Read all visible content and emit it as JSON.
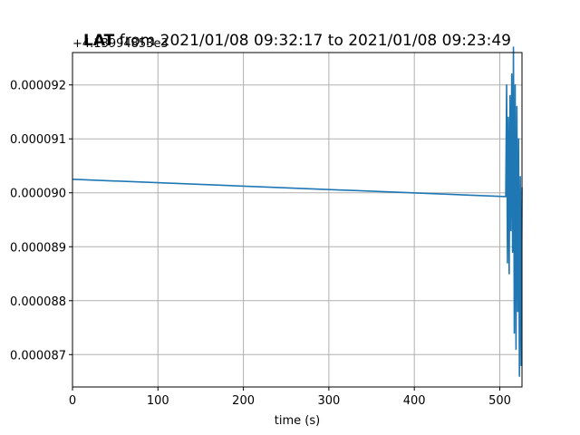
{
  "chart_data": {
    "type": "line",
    "title_bold": "LAT",
    "title_rest": " from 2021/01/08 09:32:17 to 2021/01/08 09:23:49",
    "offset_label": "+4.13994853e3",
    "xlabel": "time (s)",
    "ylabel": "",
    "xlim": [
      0,
      526
    ],
    "ylim": [
      8.64e-05,
      9.26e-05
    ],
    "grid": true,
    "x_ticks": [
      0,
      100,
      200,
      300,
      400,
      500
    ],
    "x_tick_labels": [
      "0",
      "100",
      "200",
      "300",
      "400",
      "500"
    ],
    "y_ticks": [
      8.7e-05,
      8.8e-05,
      8.9e-05,
      9e-05,
      9.1e-05,
      9.2e-05
    ],
    "y_tick_labels": [
      "0.000087",
      "0.000088",
      "0.000089",
      "0.000090",
      "0.000091",
      "0.000092"
    ],
    "line_color": "#1f77b4",
    "series": [
      {
        "x": [
          0,
          507,
          508,
          509,
          510,
          511,
          512,
          513,
          514,
          515,
          516,
          517,
          518,
          519,
          520,
          521,
          522,
          523,
          524,
          525,
          526
        ],
        "y": [
          9.025e-05,
          8.993e-05,
          9.2e-05,
          8.87e-05,
          9.14e-05,
          8.85e-05,
          9.18e-05,
          8.93e-05,
          9.22e-05,
          8.89e-05,
          9.27e-05,
          8.74e-05,
          9.2e-05,
          8.71e-05,
          9.16e-05,
          8.78e-05,
          9.1e-05,
          8.66e-05,
          9.03e-05,
          8.68e-05,
          9.01e-05
        ]
      }
    ]
  }
}
